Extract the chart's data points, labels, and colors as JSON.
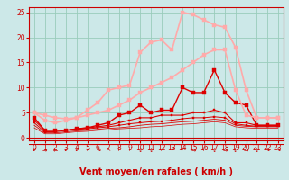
{
  "bg_color": "#cce8e8",
  "grid_color": "#99ccbb",
  "line_color_dark": "#cc0000",
  "xlabel": "Vent moyen/en rafales ( km/h )",
  "xlabel_color": "#cc0000",
  "tick_color": "#cc0000",
  "xlabel_fontsize": 7,
  "tick_fontsize": 5.5,
  "xlim": [
    -0.5,
    23.5
  ],
  "ylim": [
    -0.5,
    26
  ],
  "yticks": [
    0,
    5,
    10,
    15,
    20,
    25
  ],
  "xticks": [
    0,
    1,
    2,
    3,
    4,
    5,
    6,
    7,
    8,
    9,
    10,
    11,
    12,
    13,
    14,
    15,
    16,
    17,
    18,
    19,
    20,
    21,
    22,
    23
  ],
  "series": [
    {
      "x": [
        0,
        1,
        2,
        3,
        4,
        5,
        6,
        7,
        8,
        9,
        10,
        11,
        12,
        13,
        14,
        15,
        16,
        17,
        18,
        19,
        20,
        21,
        22,
        23
      ],
      "y": [
        4.0,
        1.5,
        1.5,
        1.5,
        1.8,
        2.0,
        2.5,
        3.0,
        4.5,
        5.0,
        6.5,
        5.0,
        5.5,
        5.5,
        10.0,
        9.0,
        9.0,
        13.5,
        9.0,
        7.0,
        6.5,
        2.5,
        2.5,
        2.5
      ],
      "color": "#dd0000",
      "lw": 1.0,
      "marker": "s",
      "ms": 2.2
    },
    {
      "x": [
        0,
        1,
        2,
        3,
        4,
        5,
        6,
        7,
        8,
        9,
        10,
        11,
        12,
        13,
        14,
        15,
        16,
        17,
        18,
        19,
        20,
        21,
        22,
        23
      ],
      "y": [
        3.5,
        1.5,
        1.5,
        1.5,
        1.8,
        2.0,
        2.2,
        2.5,
        3.0,
        3.5,
        4.0,
        4.0,
        4.5,
        4.5,
        4.5,
        5.0,
        5.0,
        5.5,
        5.0,
        3.0,
        3.0,
        2.5,
        2.5,
        2.5
      ],
      "color": "#dd0000",
      "lw": 0.8,
      "marker": "s",
      "ms": 1.8
    },
    {
      "x": [
        0,
        1,
        2,
        3,
        4,
        5,
        6,
        7,
        8,
        9,
        10,
        11,
        12,
        13,
        14,
        15,
        16,
        17,
        18,
        19,
        20,
        21,
        22,
        23
      ],
      "y": [
        3.0,
        1.2,
        1.2,
        1.5,
        1.7,
        1.8,
        2.0,
        2.2,
        2.5,
        2.8,
        3.0,
        3.2,
        3.3,
        3.5,
        3.8,
        4.0,
        4.0,
        4.2,
        4.0,
        2.8,
        2.5,
        2.3,
        2.3,
        2.3
      ],
      "color": "#dd0000",
      "lw": 0.7,
      "marker": "s",
      "ms": 1.5
    },
    {
      "x": [
        0,
        1,
        2,
        3,
        4,
        5,
        6,
        7,
        8,
        9,
        10,
        11,
        12,
        13,
        14,
        15,
        16,
        17,
        18,
        19,
        20,
        21,
        22,
        23
      ],
      "y": [
        2.5,
        1.0,
        1.0,
        1.2,
        1.4,
        1.5,
        1.7,
        1.9,
        2.0,
        2.2,
        2.5,
        2.7,
        2.8,
        3.0,
        3.2,
        3.3,
        3.5,
        3.7,
        3.5,
        2.5,
        2.3,
        2.2,
        2.2,
        2.2
      ],
      "color": "#dd0000",
      "lw": 0.6,
      "marker": null,
      "ms": 0
    },
    {
      "x": [
        0,
        1,
        2,
        3,
        4,
        5,
        6,
        7,
        8,
        9,
        10,
        11,
        12,
        13,
        14,
        15,
        16,
        17,
        18,
        19,
        20,
        21,
        22,
        23
      ],
      "y": [
        2.0,
        0.8,
        0.8,
        1.0,
        1.2,
        1.3,
        1.5,
        1.6,
        1.8,
        1.9,
        2.0,
        2.2,
        2.3,
        2.5,
        2.7,
        2.8,
        3.0,
        3.2,
        3.0,
        2.2,
        2.0,
        1.9,
        1.9,
        1.9
      ],
      "color": "#dd0000",
      "lw": 0.5,
      "marker": null,
      "ms": 0
    },
    {
      "x": [
        0,
        1,
        2,
        3,
        4,
        5,
        6,
        7,
        8,
        9,
        10,
        11,
        12,
        13,
        14,
        15,
        16,
        17,
        18,
        19,
        20,
        21,
        22,
        23
      ],
      "y": [
        5.0,
        4.5,
        4.0,
        3.8,
        4.0,
        4.5,
        5.0,
        5.5,
        6.5,
        7.5,
        9.0,
        10.0,
        11.0,
        12.0,
        13.5,
        15.0,
        16.5,
        17.5,
        17.5,
        9.5,
        4.5,
        4.0,
        4.0,
        4.0
      ],
      "color": "#ffaaaa",
      "lw": 1.2,
      "marker": "s",
      "ms": 2.5
    },
    {
      "x": [
        0,
        1,
        2,
        3,
        4,
        5,
        6,
        7,
        8,
        9,
        10,
        11,
        12,
        13,
        14,
        15,
        16,
        17,
        18,
        19,
        20,
        21,
        22,
        23
      ],
      "y": [
        5.0,
        3.5,
        3.0,
        3.5,
        4.0,
        5.5,
        7.0,
        9.5,
        10.0,
        10.5,
        17.0,
        19.0,
        19.5,
        17.5,
        25.0,
        24.5,
        23.5,
        22.5,
        22.0,
        18.0,
        9.5,
        4.0,
        4.0,
        4.0
      ],
      "color": "#ffaaaa",
      "lw": 1.2,
      "marker": "s",
      "ms": 2.5
    }
  ],
  "wind_syms": [
    "↙",
    "→",
    "←",
    "↙",
    "↙",
    "↗",
    "↘",
    "↖",
    "↑",
    "↑",
    "↓",
    "↓",
    "↗",
    "↗",
    "↗",
    "→",
    "↑",
    "↓",
    "→",
    "↓",
    "→",
    "↓",
    "↘",
    "↘"
  ]
}
